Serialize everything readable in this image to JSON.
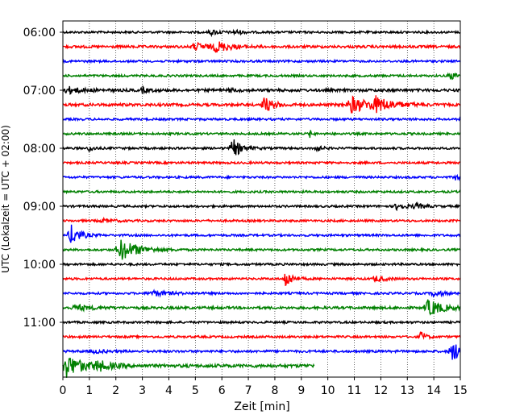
{
  "chart_data": {
    "type": "line",
    "title": "",
    "xlabel": "Zeit  [min]",
    "ylabel": "UTC (Lokalzeit = UTC + 02:00)",
    "xlim": [
      0,
      15
    ],
    "x_ticks": [
      "0",
      "1",
      "2",
      "3",
      "4",
      "5",
      "6",
      "7",
      "8",
      "9",
      "10",
      "11",
      "12",
      "13",
      "14",
      "15"
    ],
    "y_tick_labels": [
      "06:00",
      "07:00",
      "08:00",
      "09:00",
      "10:00",
      "11:00"
    ],
    "grid": "vertical-dotted",
    "legend": "none",
    "trace_minutes": 15,
    "last_trace_end_minute": 9.5,
    "colors": {
      "black": "#000000",
      "red": "#ff0000",
      "blue": "#0000ff",
      "green": "#008000"
    },
    "traces": [
      {
        "color": "black",
        "noise": 1.0,
        "events": [
          {
            "t": 5.6,
            "a": 3,
            "d": 0.4
          },
          {
            "t": 6.5,
            "a": 3,
            "d": 0.3
          }
        ]
      },
      {
        "color": "red",
        "noise": 1.2,
        "events": [
          {
            "t": 5.0,
            "a": 4,
            "d": 0.8
          },
          {
            "t": 5.8,
            "a": 6,
            "d": 0.6
          }
        ]
      },
      {
        "color": "blue",
        "noise": 1.0,
        "events": []
      },
      {
        "color": "green",
        "noise": 1.0,
        "events": [
          {
            "t": 14.6,
            "a": 5,
            "d": 0.3
          }
        ]
      },
      {
        "color": "black",
        "noise": 1.3,
        "events": [
          {
            "t": 0.2,
            "a": 4,
            "d": 0.6
          },
          {
            "t": 3.0,
            "a": 3,
            "d": 0.3
          },
          {
            "t": 6.3,
            "a": 2,
            "d": 0.3
          }
        ]
      },
      {
        "color": "red",
        "noise": 1.3,
        "events": [
          {
            "t": 7.6,
            "a": 10,
            "d": 0.4
          },
          {
            "t": 10.9,
            "a": 10,
            "d": 0.8
          },
          {
            "t": 11.8,
            "a": 8,
            "d": 0.8
          }
        ]
      },
      {
        "color": "blue",
        "noise": 1.0,
        "events": []
      },
      {
        "color": "green",
        "noise": 1.0,
        "events": [
          {
            "t": 9.3,
            "a": 6,
            "d": 0.1
          }
        ]
      },
      {
        "color": "black",
        "noise": 1.0,
        "events": [
          {
            "t": 1.0,
            "a": 4,
            "d": 0.2
          },
          {
            "t": 6.4,
            "a": 12,
            "d": 0.4
          },
          {
            "t": 9.5,
            "a": 7,
            "d": 0.2
          }
        ]
      },
      {
        "color": "red",
        "noise": 1.0,
        "events": []
      },
      {
        "color": "blue",
        "noise": 1.0,
        "events": [
          {
            "t": 14.8,
            "a": 4,
            "d": 0.2
          }
        ]
      },
      {
        "color": "green",
        "noise": 1.0,
        "events": []
      },
      {
        "color": "black",
        "noise": 1.0,
        "events": [
          {
            "t": 12.6,
            "a": 4,
            "d": 0.4
          },
          {
            "t": 13.3,
            "a": 3,
            "d": 0.4
          }
        ]
      },
      {
        "color": "red",
        "noise": 1.0,
        "events": [
          {
            "t": 1.5,
            "a": 2,
            "d": 0.5
          }
        ]
      },
      {
        "color": "blue",
        "noise": 1.0,
        "events": [
          {
            "t": 0.3,
            "a": 13,
            "d": 0.4
          }
        ]
      },
      {
        "color": "green",
        "noise": 1.0,
        "events": [
          {
            "t": 2.2,
            "a": 13,
            "d": 0.8
          }
        ]
      },
      {
        "color": "black",
        "noise": 1.0,
        "events": []
      },
      {
        "color": "red",
        "noise": 1.0,
        "events": [
          {
            "t": 8.4,
            "a": 12,
            "d": 0.3
          },
          {
            "t": 11.8,
            "a": 4,
            "d": 0.4
          }
        ]
      },
      {
        "color": "blue",
        "noise": 1.0,
        "events": [
          {
            "t": 3.4,
            "a": 3,
            "d": 0.8
          },
          {
            "t": 14.0,
            "a": 4,
            "d": 0.4
          }
        ]
      },
      {
        "color": "green",
        "noise": 1.2,
        "events": [
          {
            "t": 0.5,
            "a": 3,
            "d": 0.8
          },
          {
            "t": 13.8,
            "a": 11,
            "d": 0.6
          }
        ]
      },
      {
        "color": "black",
        "noise": 1.0,
        "events": []
      },
      {
        "color": "red",
        "noise": 1.0,
        "events": [
          {
            "t": 13.5,
            "a": 8,
            "d": 0.2
          }
        ]
      },
      {
        "color": "blue",
        "noise": 1.1,
        "events": [
          {
            "t": 1.2,
            "a": 2,
            "d": 0.4
          },
          {
            "t": 14.7,
            "a": 12,
            "d": 0.5
          }
        ]
      },
      {
        "color": "green",
        "noise": 1.5,
        "events": [
          {
            "t": 0.1,
            "a": 14,
            "d": 0.8
          },
          {
            "t": 1.3,
            "a": 5,
            "d": 0.6
          }
        ]
      }
    ]
  }
}
